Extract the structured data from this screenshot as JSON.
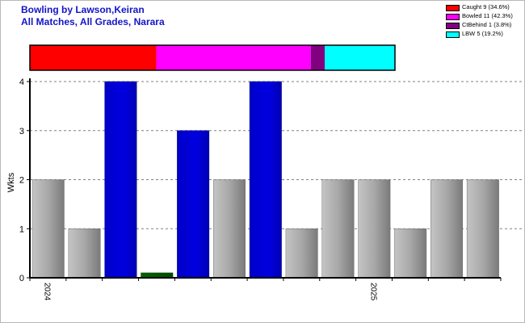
{
  "chart_data": {
    "type": "bar",
    "title": "Bowling by Lawson,Keiran",
    "subtitle": "All Matches, All Grades, Narara",
    "ylabel": "Wkts",
    "xlabel": "",
    "ylim": [
      0,
      4
    ],
    "yticks": [
      "0",
      "1",
      "2",
      "3",
      "4"
    ],
    "grid": true,
    "values": [
      2,
      1,
      4,
      0.1,
      3,
      2,
      4,
      1,
      2,
      2,
      1,
      2,
      2
    ],
    "bar_colors": [
      "gray",
      "gray",
      "blue",
      "green",
      "blue",
      "gray",
      "blue",
      "gray",
      "gray",
      "gray",
      "gray",
      "gray",
      "gray"
    ],
    "x_tick_labels": [
      {
        "label": "2024",
        "index": 0
      },
      {
        "label": "2025",
        "index": 9
      }
    ],
    "dismissals": [
      {
        "label": "Caught 9 (34.6%)",
        "count": 9,
        "percent": 34.6,
        "color": "#ff0000"
      },
      {
        "label": "Bowled 11 (42.3%)",
        "count": 11,
        "percent": 42.3,
        "color": "#ff00ff"
      },
      {
        "label": "CtBehind 1 (3.8%)",
        "count": 1,
        "percent": 3.8,
        "color": "#800080"
      },
      {
        "label": "LBW 5 (19.2%)",
        "count": 5,
        "percent": 19.2,
        "color": "#00ffff"
      }
    ],
    "legend_position": "top-right"
  }
}
